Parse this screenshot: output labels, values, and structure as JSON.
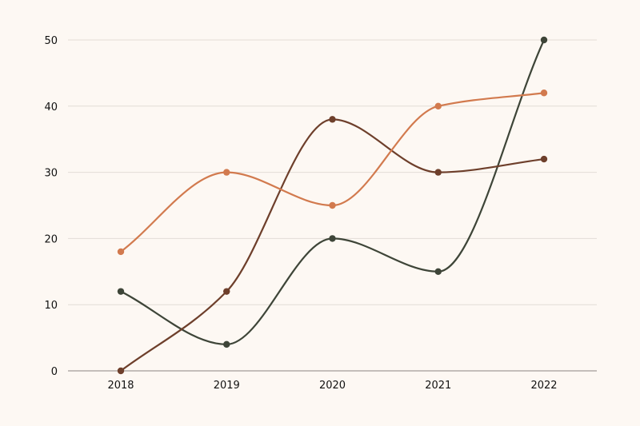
{
  "colors": {
    "background": "#fdf8f3",
    "series_dark_green": "#3e4538",
    "series_brown": "#6e3f2b",
    "series_orange": "#d27a4e"
  },
  "chart_data": {
    "type": "line",
    "title": "",
    "xlabel": "",
    "ylabel": "",
    "categories": [
      "2018",
      "2019",
      "2020",
      "2021",
      "2022"
    ],
    "ylim": [
      0,
      50
    ],
    "yticks": [
      0,
      10,
      20,
      30,
      40,
      50
    ],
    "grid": true,
    "legend": "none",
    "smooth": true,
    "series": [
      {
        "color": "#3e4538",
        "values": [
          12,
          4,
          20,
          15,
          50
        ]
      },
      {
        "color": "#6e3f2b",
        "values": [
          0,
          12,
          38,
          30,
          32
        ]
      },
      {
        "color": "#d27a4e",
        "values": [
          18,
          30,
          25,
          40,
          42
        ]
      }
    ]
  }
}
